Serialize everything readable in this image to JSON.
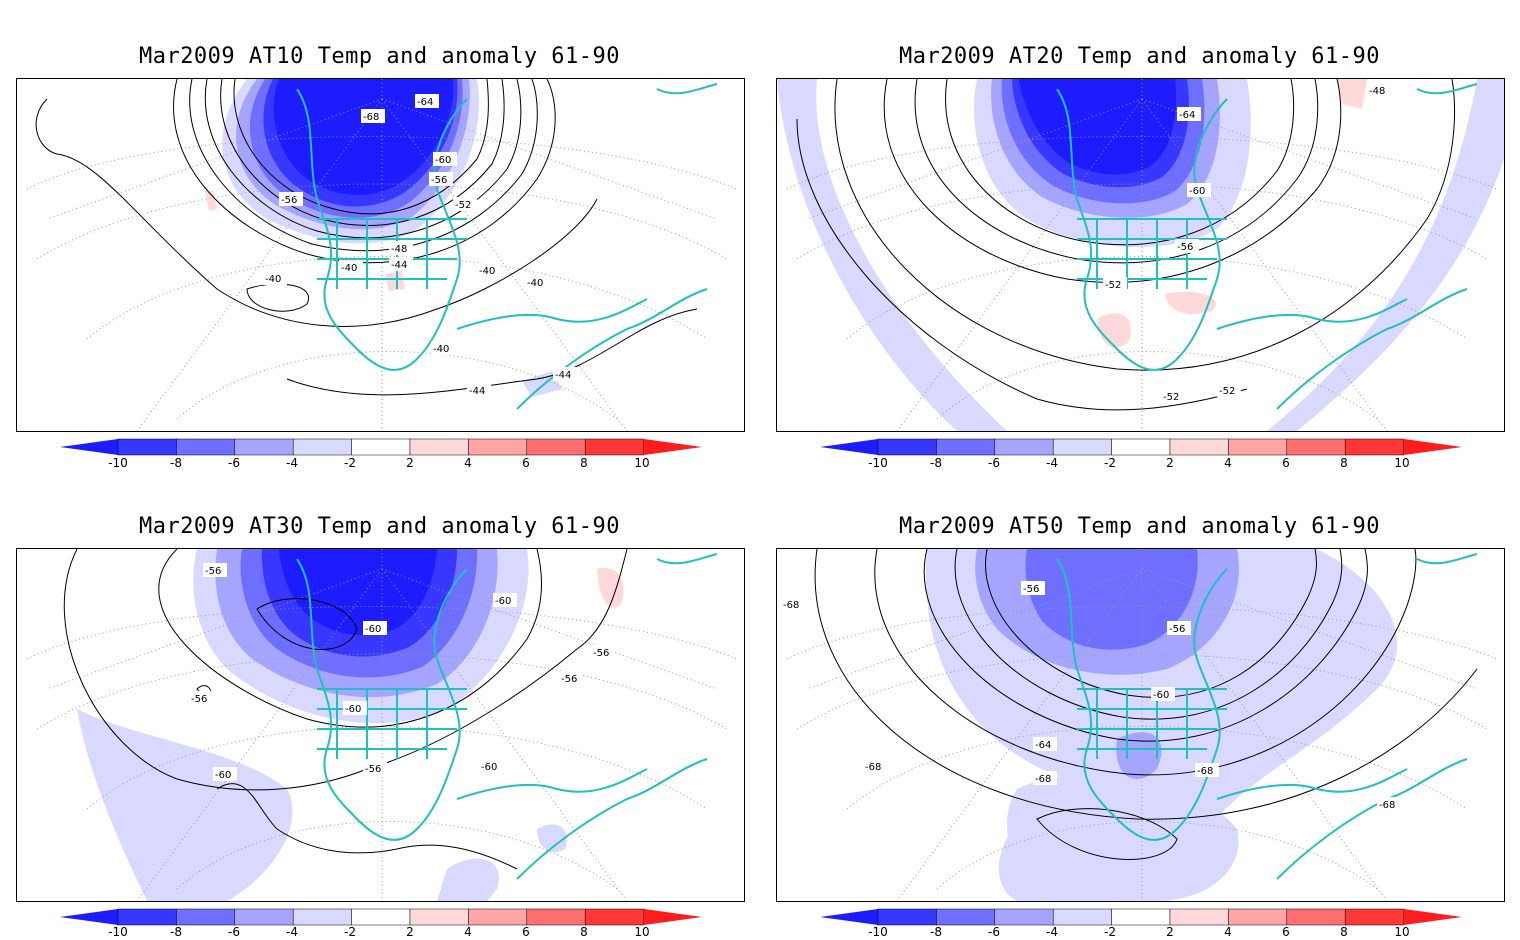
{
  "panels": [
    {
      "title": "Mar2009 AT10 Temp and anomaly 61-90",
      "contour_labels": [
        "-40",
        "-40",
        "-40",
        "-40",
        "-40",
        "-44",
        "-44",
        "-44",
        "-48",
        "-52",
        "-56",
        "-56",
        "-60",
        "-64",
        "-68"
      ],
      "colorbar_ticks": [
        "-10",
        "-8",
        "-6",
        "-4",
        "-2",
        "2",
        "4",
        "6",
        "8",
        "10"
      ]
    },
    {
      "title": "Mar2009 AT20 Temp and anomaly 61-90",
      "contour_labels": [
        "-48",
        "-52",
        "-52",
        "-52",
        "-56",
        "-60",
        "-64"
      ],
      "colorbar_ticks": [
        "-10",
        "-8",
        "-6",
        "-4",
        "-2",
        "2",
        "4",
        "6",
        "8",
        "10"
      ]
    },
    {
      "title": "Mar2009 AT30 Temp and anomaly 61-90",
      "contour_labels": [
        "-56",
        "-56",
        "-56",
        "-56",
        "-56",
        "-60",
        "-60",
        "-60",
        "-60",
        "-60"
      ],
      "colorbar_ticks": [
        "-10",
        "-8",
        "-6",
        "-4",
        "-2",
        "2",
        "4",
        "6",
        "8",
        "10"
      ]
    },
    {
      "title": "Mar2009 AT50 Temp and anomaly 61-90",
      "contour_labels": [
        "-56",
        "-56",
        "-60",
        "-64",
        "-68",
        "-68",
        "-68",
        "-68",
        "-68"
      ],
      "colorbar_ticks": [
        "-10",
        "-8",
        "-6",
        "-4",
        "-2",
        "2",
        "4",
        "6",
        "8",
        "10"
      ]
    }
  ],
  "colorbar": {
    "colors": [
      "#1c1cff",
      "#3737ff",
      "#6e6eff",
      "#a5a5ff",
      "#d9d9ff",
      "#ffffff",
      "#ffd9d9",
      "#ffa5a5",
      "#ff6e6e",
      "#ff3737",
      "#ff1c1c"
    ]
  },
  "colors": {
    "coastline": "#20c0c0",
    "contour": "#000000",
    "grid": "#9a9a9a"
  }
}
